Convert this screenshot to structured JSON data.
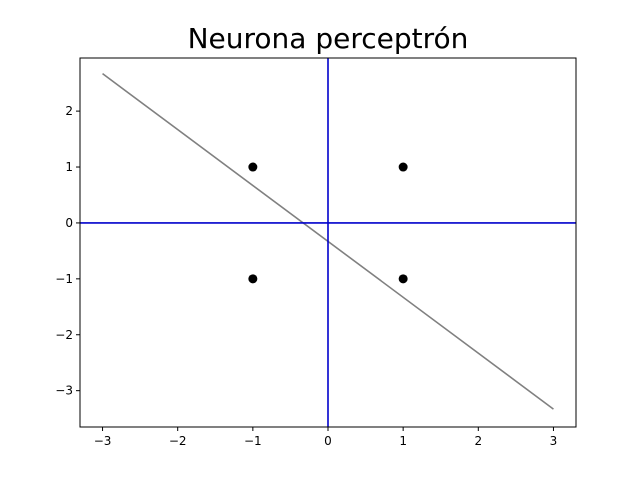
{
  "chart_data": {
    "type": "scatter",
    "title": "Neurona perceptrón",
    "xlabel": "",
    "ylabel": "",
    "xlim": [
      -3.3,
      3.3
    ],
    "ylim": [
      -3.65,
      2.95
    ],
    "xticks": [
      -3,
      -2,
      -1,
      0,
      1,
      2,
      3
    ],
    "yticks": [
      -3,
      -2,
      -1,
      0,
      1,
      2
    ],
    "xtick_labels": [
      "−3",
      "−2",
      "−1",
      "0",
      "1",
      "2",
      "3"
    ],
    "ytick_labels": [
      "−3",
      "−2",
      "−1",
      "0",
      "1",
      "2"
    ],
    "grid": false,
    "points": {
      "x": [
        -1,
        -1,
        1,
        1
      ],
      "y": [
        1,
        -1,
        1,
        -1
      ],
      "color": "#000000"
    },
    "reference_lines": {
      "horizontal_y": 0,
      "vertical_x": 0,
      "color": "#0000cc"
    },
    "decision_line": {
      "x": [
        -3,
        3
      ],
      "y": [
        2.67,
        -3.33
      ],
      "color": "#808080"
    }
  }
}
